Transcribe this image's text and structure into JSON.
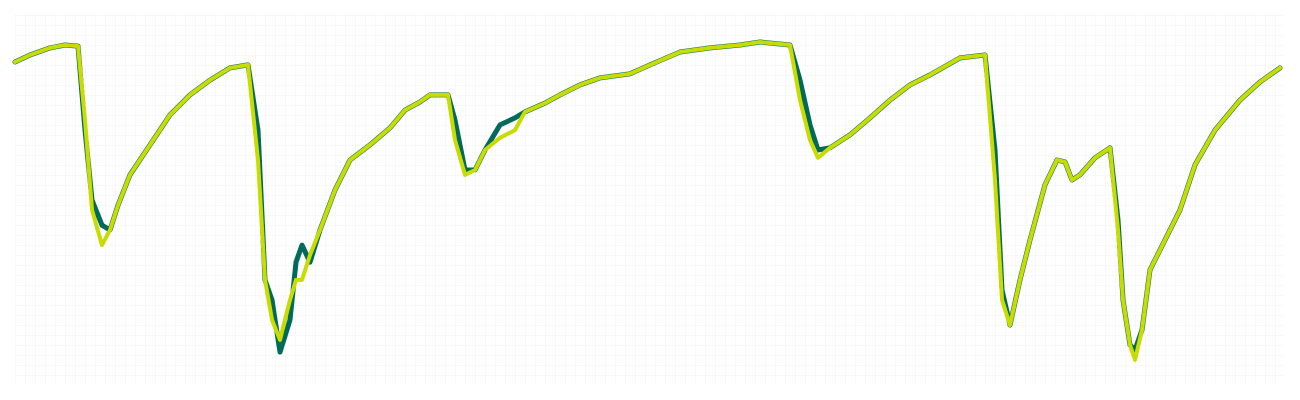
{
  "chart_data": {
    "type": "line",
    "x": [
      0,
      1.5,
      3.5,
      5,
      6.3,
      7,
      7.7,
      8.7,
      9.5,
      10.3,
      11.5,
      13.5,
      15.5,
      17.5,
      19.5,
      21.5,
      23.3,
      24.3,
      25,
      25.7,
      26.5,
      27.5,
      28.1,
      28.7,
      29.5,
      30.5,
      32,
      33.5,
      35.5,
      37.5,
      39,
      40.5,
      41.5,
      43.3,
      44,
      45,
      46,
      47,
      48.5,
      50,
      51,
      53,
      54.5,
      56.5,
      58.5,
      61.5,
      63.5,
      66.5,
      69.5,
      72.5,
      74.5,
      77.5,
      78.5,
      79.5,
      80.3,
      81.5,
      83.5,
      85.5,
      87.5,
      89.5,
      91.5,
      94.5,
      97,
      98,
      98.7,
      99.5,
      100.5,
      101.5,
      103,
      104.2,
      105,
      105.7,
      106.5,
      108,
      109.5,
      110.3,
      110.8,
      111.5,
      112,
      112.7,
      113.5,
      115,
      116.5,
      118,
      120,
      122.5,
      124.5,
      126.5
    ],
    "series": [
      {
        "color": "#006b5b",
        "values": [
          87.3,
          89.2,
          91.1,
          91.9,
          91.6,
          68.9,
          50,
          43.2,
          41.9,
          48.6,
          56.8,
          64.9,
          73,
          78.4,
          82.4,
          85.7,
          86.5,
          68.9,
          28.4,
          23,
          8.9,
          17.6,
          33.2,
          37.8,
          33.2,
          41.9,
          52.7,
          60.8,
          64.9,
          69.5,
          74.3,
          76.5,
          78.4,
          78.4,
          71.6,
          58.1,
          58.1,
          63.5,
          70.3,
          72.2,
          73.8,
          76.2,
          78.4,
          81.1,
          83,
          84.1,
          86.5,
          90,
          91.1,
          91.9,
          92.7,
          91.9,
          82.4,
          70.3,
          63.5,
          64.1,
          67.6,
          72.2,
          77,
          81.1,
          83.8,
          88.4,
          89.2,
          63.5,
          25.7,
          16.2,
          28.4,
          39.2,
          54.1,
          60.8,
          60.3,
          55.4,
          56.8,
          61.4,
          64.1,
          44.6,
          23,
          10.8,
          9.5,
          14.9,
          31.1,
          39.2,
          47.3,
          59.5,
          68.9,
          77,
          81.9,
          85.7
        ]
      },
      {
        "color": "#c8dc00",
        "values": [
          87.3,
          89.2,
          91.1,
          91.9,
          91.6,
          71.6,
          47.3,
          37.8,
          41.9,
          48.6,
          56.8,
          64.9,
          73,
          78.4,
          82.4,
          85.7,
          86.5,
          60.8,
          28.4,
          17.6,
          12.2,
          23,
          28.4,
          28.4,
          35.1,
          41.9,
          52.7,
          60.8,
          64.9,
          69.5,
          74.3,
          76.5,
          78.4,
          78.4,
          66.2,
          56.8,
          58.1,
          63.5,
          66.8,
          68.9,
          73.8,
          76.2,
          78.4,
          81.1,
          83,
          84.1,
          86.5,
          90,
          91.1,
          91.9,
          92.7,
          91.9,
          77,
          66.2,
          61.4,
          64.1,
          67.6,
          72.2,
          77,
          81.1,
          83.8,
          88.4,
          89.2,
          55.4,
          23,
          16.2,
          28.4,
          39.2,
          54.1,
          60.8,
          60.3,
          55.4,
          56.8,
          61.4,
          64.1,
          41.9,
          23,
          10.8,
          6.8,
          14.9,
          31.1,
          39.2,
          47.3,
          59.5,
          68.9,
          77,
          81.9,
          85.7
        ]
      }
    ],
    "xlim": [
      0,
      126.8
    ],
    "ylim": [
      0,
      100
    ]
  }
}
